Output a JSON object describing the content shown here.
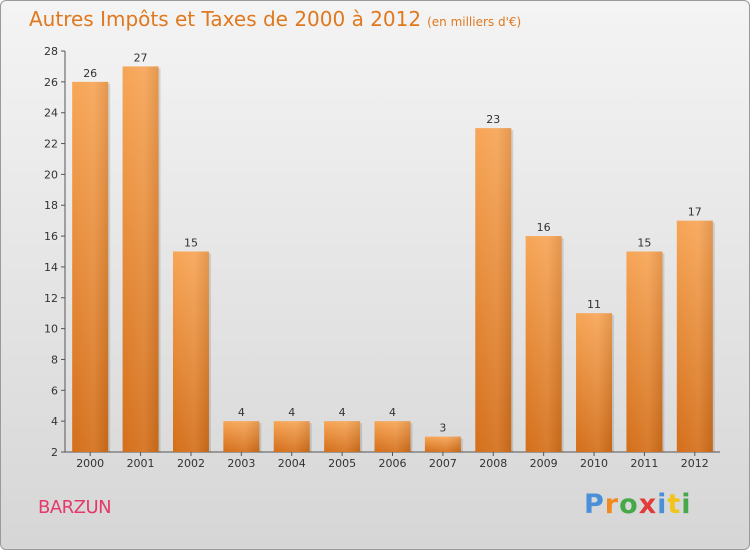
{
  "title": "Autres Impôts et Taxes de 2000 à 2012",
  "subtitle": "(en milliers d'€)",
  "commune": "BARZUN",
  "logo": {
    "text": "Proxiti",
    "letters": [
      {
        "ch": "P",
        "color": "#4a90d9"
      },
      {
        "ch": "r",
        "color": "#f08a1c"
      },
      {
        "ch": "o",
        "color": "#46a846"
      },
      {
        "ch": "x",
        "color": "#e23b3b"
      },
      {
        "ch": "i",
        "color": "#4a90d9"
      },
      {
        "ch": "t",
        "color": "#f0c419"
      },
      {
        "ch": "i",
        "color": "#46a846"
      }
    ]
  },
  "colors": {
    "title": "#e0781e",
    "bar_top": "#f7a556",
    "bar_bottom": "#d46f1a",
    "commune": "#e4396a"
  },
  "chart_data": {
    "type": "bar",
    "categories": [
      "2000",
      "2001",
      "2002",
      "2003",
      "2004",
      "2005",
      "2006",
      "2007",
      "2008",
      "2009",
      "2010",
      "2011",
      "2012"
    ],
    "values": [
      26,
      27,
      15,
      4,
      4,
      4,
      4,
      3,
      23,
      16,
      11,
      15,
      17
    ],
    "ylim": [
      2,
      28
    ],
    "yticks": [
      2,
      4,
      6,
      8,
      10,
      12,
      14,
      16,
      18,
      20,
      22,
      24,
      26,
      28
    ],
    "grid": false,
    "title": "Autres Impôts et Taxes de 2000 à 2012",
    "subtitle": "(en milliers d'€)",
    "xlabel": "",
    "ylabel": ""
  }
}
